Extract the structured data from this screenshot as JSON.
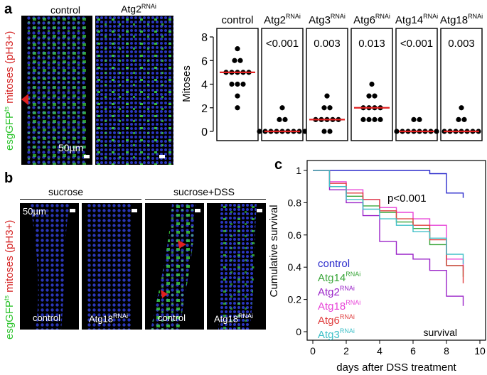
{
  "panel_a": {
    "label": "a",
    "col_control": "control",
    "col_atg2": "Atg2",
    "col_atg2_sup": "RNAi",
    "ylabel_green": "esgGFP",
    "ylabel_green_sup": "ts",
    "ylabel_red": " mitoses (pH3+)",
    "scalebar": "50µm"
  },
  "panel_b": {
    "label": "b",
    "group_sucrose": "sucrose",
    "group_sucrose_dss": "sucrose+DSS",
    "scalebar": "50µm",
    "img1": "control",
    "img2": "Atg18",
    "img3": "control",
    "img4": "Atg18",
    "sup": "RNAi",
    "ylabel_green": "esgGFP",
    "ylabel_green_sup": "ts",
    "ylabel_red": " mitoses (pH3+)"
  },
  "chart_data": [
    {
      "type": "scatter",
      "title": "",
      "ylabel": "Mitoses",
      "ylim": [
        0,
        8
      ],
      "yticks": [
        "0",
        "2",
        "4",
        "6",
        "8"
      ],
      "sup": "RNAi",
      "groups": [
        {
          "name": "control",
          "sup": "",
          "pvalue": "",
          "median": 5,
          "points": [
            7,
            6,
            6,
            5,
            5,
            5,
            5,
            5,
            4,
            4,
            4,
            3,
            2
          ]
        },
        {
          "name": "Atg2",
          "sup": "RNAi",
          "pvalue": "<0.001",
          "median": 0,
          "points": [
            2,
            1,
            1,
            0,
            0,
            0,
            0,
            0,
            0,
            0,
            0,
            0
          ]
        },
        {
          "name": "Atg3",
          "sup": "RNAi",
          "pvalue": "0.003",
          "median": 1,
          "points": [
            3,
            2,
            2,
            1,
            1,
            1,
            1,
            1,
            0,
            0
          ]
        },
        {
          "name": "Atg6",
          "sup": "RNAi",
          "pvalue": "0.013",
          "median": 2,
          "points": [
            4,
            3,
            3,
            2,
            2,
            2,
            2,
            1,
            1,
            1,
            1
          ]
        },
        {
          "name": "Atg14",
          "sup": "RNAi",
          "pvalue": "<0.001",
          "median": 0,
          "points": [
            1,
            1,
            0,
            0,
            0,
            0,
            0,
            0,
            0,
            0
          ]
        },
        {
          "name": "Atg18",
          "sup": "RNAi",
          "pvalue": "0.003",
          "median": 0,
          "points": [
            2,
            1,
            1,
            0,
            0,
            0,
            0,
            0,
            0,
            0
          ]
        }
      ]
    },
    {
      "type": "line",
      "panel_label": "c",
      "xlabel": "days after DSS treatment",
      "ylabel": "Cumulative survival",
      "xlim": [
        0,
        10
      ],
      "ylim": [
        0,
        1
      ],
      "xticks": [
        "0",
        "2",
        "4",
        "6",
        "8",
        "10"
      ],
      "yticks": [
        "0",
        "0.2",
        "0.4",
        "0.6",
        "0.8",
        "1"
      ],
      "annotation_p": "p<0.001",
      "annotation_corner": "survival",
      "sup": "RNAi",
      "series": [
        {
          "name": "control",
          "sup": "",
          "color": "#2c2ccc",
          "points": [
            [
              0,
              1
            ],
            [
              7,
              1
            ],
            [
              7,
              0.98
            ],
            [
              8,
              0.98
            ],
            [
              8,
              0.86
            ],
            [
              9,
              0.86
            ],
            [
              9,
              0.83
            ]
          ]
        },
        {
          "name": "Atg14",
          "sup": "RNAi",
          "color": "#3aa63a",
          "points": [
            [
              0,
              1
            ],
            [
              1,
              1
            ],
            [
              1,
              0.9
            ],
            [
              2,
              0.9
            ],
            [
              2,
              0.84
            ],
            [
              3,
              0.84
            ],
            [
              3,
              0.78
            ],
            [
              4,
              0.78
            ],
            [
              4,
              0.74
            ],
            [
              5,
              0.74
            ],
            [
              5,
              0.68
            ],
            [
              6,
              0.68
            ],
            [
              6,
              0.64
            ],
            [
              7,
              0.64
            ],
            [
              7,
              0.54
            ],
            [
              8,
              0.54
            ],
            [
              8,
              0.41
            ],
            [
              9,
              0.41
            ],
            [
              9,
              0.34
            ]
          ]
        },
        {
          "name": "Atg2",
          "sup": "RNAi",
          "color": "#9a22c8",
          "points": [
            [
              0,
              1
            ],
            [
              1,
              1
            ],
            [
              1,
              0.88
            ],
            [
              2,
              0.88
            ],
            [
              2,
              0.8
            ],
            [
              3,
              0.8
            ],
            [
              3,
              0.72
            ],
            [
              4,
              0.72
            ],
            [
              4,
              0.56
            ],
            [
              5,
              0.56
            ],
            [
              5,
              0.48
            ],
            [
              6,
              0.48
            ],
            [
              6,
              0.45
            ],
            [
              7,
              0.45
            ],
            [
              7,
              0.38
            ],
            [
              8,
              0.38
            ],
            [
              8,
              0.22
            ],
            [
              9,
              0.22
            ],
            [
              9,
              0.16
            ]
          ]
        },
        {
          "name": "Atg18",
          "sup": "RNAi",
          "color": "#e844d8",
          "points": [
            [
              0,
              1
            ],
            [
              1,
              1
            ],
            [
              1,
              0.93
            ],
            [
              2,
              0.93
            ],
            [
              2,
              0.88
            ],
            [
              3,
              0.88
            ],
            [
              3,
              0.82
            ],
            [
              4,
              0.82
            ],
            [
              4,
              0.77
            ],
            [
              5,
              0.77
            ],
            [
              5,
              0.74
            ],
            [
              6,
              0.74
            ],
            [
              6,
              0.7
            ],
            [
              7,
              0.7
            ],
            [
              7,
              0.66
            ],
            [
              8,
              0.66
            ],
            [
              8,
              0.45
            ],
            [
              9,
              0.45
            ],
            [
              9,
              0.38
            ]
          ]
        },
        {
          "name": "Atg6",
          "sup": "RNAi",
          "color": "#e04040",
          "points": [
            [
              0,
              1
            ],
            [
              1,
              1
            ],
            [
              1,
              0.92
            ],
            [
              2,
              0.92
            ],
            [
              2,
              0.86
            ],
            [
              3,
              0.86
            ],
            [
              3,
              0.82
            ],
            [
              4,
              0.82
            ],
            [
              4,
              0.75
            ],
            [
              5,
              0.75
            ],
            [
              5,
              0.7
            ],
            [
              6,
              0.7
            ],
            [
              6,
              0.66
            ],
            [
              7,
              0.66
            ],
            [
              7,
              0.57
            ],
            [
              8,
              0.57
            ],
            [
              8,
              0.41
            ],
            [
              9,
              0.41
            ],
            [
              9,
              0.3
            ]
          ]
        },
        {
          "name": "Atg3",
          "sup": "RNAi",
          "color": "#40c0c8",
          "points": [
            [
              0,
              1
            ],
            [
              1,
              1
            ],
            [
              1,
              0.9
            ],
            [
              2,
              0.9
            ],
            [
              2,
              0.82
            ],
            [
              3,
              0.82
            ],
            [
              3,
              0.76
            ],
            [
              4,
              0.76
            ],
            [
              4,
              0.7
            ],
            [
              5,
              0.7
            ],
            [
              5,
              0.66
            ],
            [
              6,
              0.66
            ],
            [
              6,
              0.62
            ],
            [
              7,
              0.62
            ],
            [
              7,
              0.58
            ],
            [
              8,
              0.58
            ],
            [
              8,
              0.48
            ],
            [
              9,
              0.48
            ],
            [
              9,
              0.42
            ]
          ]
        }
      ]
    }
  ]
}
